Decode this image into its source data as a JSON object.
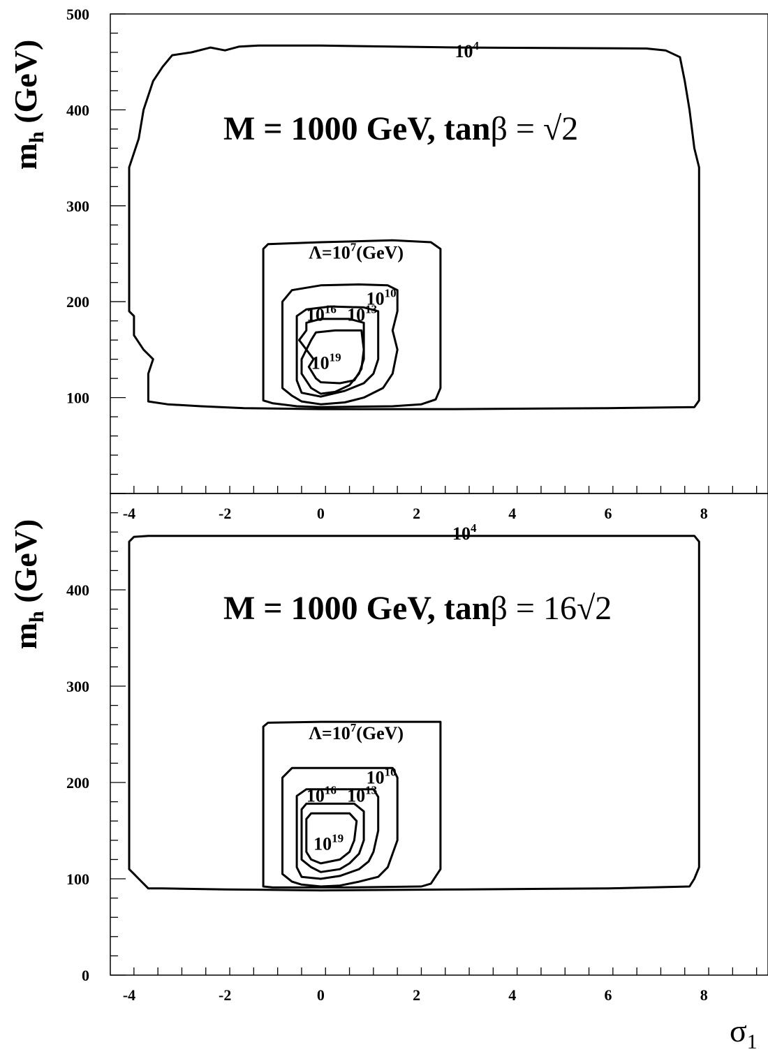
{
  "chart_data": [
    {
      "type": "contour",
      "title_main": "M = 1000 GeV, tan",
      "title_beta": "β",
      "title_eq": "= ",
      "title_value": "√2",
      "ylabel_main": "m",
      "ylabel_sub": "h",
      "ylabel_unit": " (GeV)",
      "xlim": [
        -4.4,
        9.4
      ],
      "ylim": [
        0,
        500
      ],
      "x_ticks": [
        -4,
        -2,
        0,
        2,
        4,
        6,
        8
      ],
      "x_tick_labels": [
        "-4",
        "-2",
        "0",
        "2",
        "4",
        "6",
        "8"
      ],
      "y_ticks": [
        100,
        200,
        300,
        400,
        500
      ],
      "y_tick_labels": [
        "100",
        "200",
        "300",
        "400",
        "500"
      ],
      "contours": [
        {
          "level": "10^4",
          "label_base": "10",
          "label_exp": "4",
          "label_at": [
            2.8,
            455
          ],
          "points": [
            [
              -3.6,
              96
            ],
            [
              -3.6,
              125
            ],
            [
              -3.5,
              140
            ],
            [
              -3.7,
              150
            ],
            [
              -3.9,
              165
            ],
            [
              -3.9,
              185
            ],
            [
              -4.0,
              190
            ],
            [
              -4.0,
              340
            ],
            [
              -3.8,
              370
            ],
            [
              -3.7,
              400
            ],
            [
              -3.5,
              430
            ],
            [
              -3.3,
              445
            ],
            [
              -3.1,
              457
            ],
            [
              -2.7,
              460
            ],
            [
              -2.3,
              465
            ],
            [
              -2.0,
              462
            ],
            [
              -1.7,
              466
            ],
            [
              -1.3,
              467
            ],
            [
              0,
              467
            ],
            [
              3,
              465
            ],
            [
              6.8,
              464
            ],
            [
              7.2,
              462
            ],
            [
              7.5,
              455
            ],
            [
              7.6,
              430
            ],
            [
              7.7,
              400
            ],
            [
              7.8,
              360
            ],
            [
              7.9,
              340
            ],
            [
              7.9,
              97
            ],
            [
              7.8,
              90
            ],
            [
              6,
              89
            ],
            [
              2.8,
              88
            ],
            [
              0,
              88
            ],
            [
              -1.6,
              89
            ],
            [
              -2.5,
              91
            ],
            [
              -3.2,
              93
            ],
            [
              -3.6,
              96
            ]
          ]
        },
        {
          "level": "10^7",
          "label_pre": "Λ=10",
          "label_exp": "7",
          "label_post": "(GeV)",
          "label_at": [
            -0.25,
            245
          ],
          "points": [
            [
              -1.2,
              97
            ],
            [
              -1.2,
              255
            ],
            [
              -1.1,
              260
            ],
            [
              0,
              262
            ],
            [
              1.5,
              264
            ],
            [
              2.3,
              262
            ],
            [
              2.5,
              255
            ],
            [
              2.5,
              110
            ],
            [
              2.4,
              98
            ],
            [
              2.1,
              93
            ],
            [
              1.5,
              91
            ],
            [
              0,
              90
            ],
            [
              -0.5,
              91
            ],
            [
              -1.0,
              94
            ],
            [
              -1.2,
              97
            ]
          ]
        },
        {
          "level": "10^10",
          "label_base": "10",
          "label_exp": "10",
          "label_at": [
            0.95,
            197
          ],
          "points": [
            [
              -0.6,
              102
            ],
            [
              -0.8,
              110
            ],
            [
              -0.8,
              200
            ],
            [
              -0.6,
              212
            ],
            [
              0,
              217
            ],
            [
              0.8,
              218
            ],
            [
              1.4,
              217
            ],
            [
              1.6,
              212
            ],
            [
              1.6,
              190
            ],
            [
              1.5,
              170
            ],
            [
              1.6,
              150
            ],
            [
              1.5,
              125
            ],
            [
              1.3,
              110
            ],
            [
              0.9,
              100
            ],
            [
              0.5,
              95
            ],
            [
              0,
              93
            ],
            [
              -0.4,
              96
            ],
            [
              -0.6,
              102
            ]
          ]
        },
        {
          "level": "10^13",
          "label_base": "10",
          "label_exp": "13",
          "label_at": [
            0.55,
            180
          ],
          "points": [
            [
              -0.4,
              105
            ],
            [
              -0.5,
              118
            ],
            [
              -0.5,
              185
            ],
            [
              -0.3,
              192
            ],
            [
              0.2,
              195
            ],
            [
              0.9,
              194
            ],
            [
              1.2,
              190
            ],
            [
              1.2,
              165
            ],
            [
              1.2,
              140
            ],
            [
              1.1,
              125
            ],
            [
              0.9,
              115
            ],
            [
              0.5,
              107
            ],
            [
              0,
              101
            ],
            [
              -0.4,
              105
            ]
          ]
        },
        {
          "level": "10^16",
          "label_base": "10",
          "label_exp": "16",
          "label_at": [
            -0.3,
            180
          ],
          "points": [
            [
              -0.2,
              110
            ],
            [
              -0.4,
              125
            ],
            [
              -0.4,
              140
            ],
            [
              -0.3,
              150
            ],
            [
              -0.45,
              160
            ],
            [
              -0.3,
              170
            ],
            [
              -0.3,
              178
            ],
            [
              0,
              182
            ],
            [
              0.6,
              182
            ],
            [
              0.9,
              178
            ],
            [
              0.9,
              160
            ],
            [
              0.9,
              140
            ],
            [
              0.8,
              125
            ],
            [
              0.6,
              113
            ],
            [
              0.3,
              106
            ],
            [
              0,
              104
            ],
            [
              -0.2,
              110
            ]
          ]
        },
        {
          "level": "10^19",
          "label_base": "10",
          "label_exp": "19",
          "label_at": [
            -0.2,
            130
          ],
          "points": [
            [
              -0.1,
              120
            ],
            [
              -0.25,
              132
            ],
            [
              -0.15,
              140
            ],
            [
              -0.3,
              150
            ],
            [
              -0.2,
              160
            ],
            [
              -0.1,
              168
            ],
            [
              0.3,
              170
            ],
            [
              0.85,
              170
            ],
            [
              0.9,
              150
            ],
            [
              0.85,
              130
            ],
            [
              0.7,
              118
            ],
            [
              0.4,
              115
            ],
            [
              0,
              116
            ],
            [
              -0.1,
              120
            ]
          ]
        }
      ]
    },
    {
      "type": "contour",
      "title_main": "M = 1000 GeV, tan",
      "title_beta": "β",
      "title_eq": "= ",
      "title_value": "16√2",
      "ylabel_main": "m",
      "ylabel_sub": "h",
      "ylabel_unit": " (GeV)",
      "xlabel": "σ",
      "xlabel_sub": "1",
      "xlim": [
        -4.4,
        9.4
      ],
      "ylim": [
        0,
        500
      ],
      "x_ticks": [
        -4,
        -2,
        0,
        2,
        4,
        6,
        8
      ],
      "x_tick_labels": [
        "-4",
        "-2",
        "0",
        "2",
        "4",
        "6",
        "8"
      ],
      "y_ticks": [
        0,
        100,
        200,
        300,
        400
      ],
      "y_tick_labels": [
        "0",
        "100",
        "200",
        "300",
        "400"
      ],
      "contours": [
        {
          "level": "10^4",
          "label_base": "10",
          "label_exp": "4",
          "label_at": [
            2.75,
            452
          ],
          "points": [
            [
              -3.6,
              90
            ],
            [
              -3.8,
              100
            ],
            [
              -3.9,
              105
            ],
            [
              -4.0,
              110
            ],
            [
              -4.0,
              450
            ],
            [
              -3.9,
              455
            ],
            [
              -3.6,
              456
            ],
            [
              0,
              456
            ],
            [
              4,
              456
            ],
            [
              7.8,
              456
            ],
            [
              7.9,
              450
            ],
            [
              7.9,
              112
            ],
            [
              7.8,
              100
            ],
            [
              7.7,
              92
            ],
            [
              6,
              90
            ],
            [
              3,
              89
            ],
            [
              0,
              88
            ],
            [
              -2,
              89
            ],
            [
              -3.3,
              90
            ],
            [
              -3.6,
              90
            ]
          ]
        },
        {
          "level": "10^7",
          "label_pre": "Λ=10",
          "label_exp": "7",
          "label_post": "(GeV)",
          "label_at": [
            -0.25,
            245
          ],
          "points": [
            [
              -1.2,
              92
            ],
            [
              -1.2,
              258
            ],
            [
              -1.1,
              262
            ],
            [
              0,
              263
            ],
            [
              2.5,
              263
            ],
            [
              2.5,
              250
            ],
            [
              2.5,
              110
            ],
            [
              2.3,
              95
            ],
            [
              2.1,
              92
            ],
            [
              0.5,
              91
            ],
            [
              -1.0,
              91
            ],
            [
              -1.2,
              92
            ]
          ]
        },
        {
          "level": "10^10",
          "label_base": "10",
          "label_exp": "10",
          "label_at": [
            0.95,
            199
          ],
          "points": [
            [
              -0.6,
              97
            ],
            [
              -0.8,
              105
            ],
            [
              -0.8,
              205
            ],
            [
              -0.6,
              215
            ],
            [
              1.5,
              215
            ],
            [
              1.6,
              205
            ],
            [
              1.6,
              140
            ],
            [
              1.4,
              112
            ],
            [
              1.2,
              102
            ],
            [
              0.8,
              97
            ],
            [
              0.4,
              93
            ],
            [
              0,
              92
            ],
            [
              -0.4,
              94
            ],
            [
              -0.6,
              97
            ]
          ]
        },
        {
          "level": "10^13",
          "label_base": "10",
          "label_exp": "13",
          "label_at": [
            0.55,
            180
          ],
          "points": [
            [
              -0.4,
              102
            ],
            [
              -0.5,
              112
            ],
            [
              -0.5,
              186
            ],
            [
              -0.3,
              193
            ],
            [
              1.1,
              193
            ],
            [
              1.2,
              185
            ],
            [
              1.2,
              150
            ],
            [
              1.1,
              128
            ],
            [
              1.0,
              118
            ],
            [
              0.8,
              110
            ],
            [
              0.4,
              103
            ],
            [
              0,
              100
            ],
            [
              -0.4,
              102
            ]
          ]
        },
        {
          "level": "10^16",
          "label_base": "10",
          "label_exp": "16",
          "label_at": [
            -0.3,
            180
          ],
          "points": [
            [
              -0.2,
              112
            ],
            [
              -0.4,
              120
            ],
            [
              -0.4,
              172
            ],
            [
              -0.3,
              178
            ],
            [
              0.7,
              178
            ],
            [
              0.9,
              170
            ],
            [
              0.9,
              140
            ],
            [
              0.8,
              126
            ],
            [
              0.6,
              116
            ],
            [
              0.4,
              110
            ],
            [
              0,
              107
            ],
            [
              -0.2,
              112
            ]
          ]
        },
        {
          "level": "10^19",
          "label_base": "10",
          "label_exp": "19",
          "label_at": [
            -0.15,
            130
          ],
          "points": [
            [
              -0.2,
              120
            ],
            [
              -0.3,
              128
            ],
            [
              -0.3,
              162
            ],
            [
              -0.2,
              168
            ],
            [
              0.6,
              168
            ],
            [
              0.75,
              160
            ],
            [
              0.7,
              140
            ],
            [
              0.6,
              128
            ],
            [
              0.4,
              120
            ],
            [
              0,
              116
            ],
            [
              -0.2,
              120
            ]
          ]
        }
      ]
    }
  ]
}
